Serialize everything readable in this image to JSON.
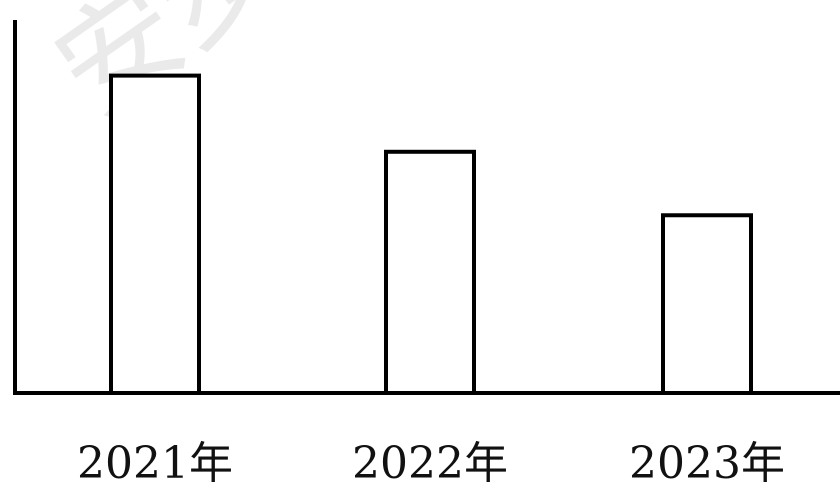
{
  "watermark": "安步",
  "chart_data": {
    "type": "bar",
    "categories": [
      "2021年",
      "2022年",
      "2023年"
    ],
    "values": [
      100,
      76,
      56
    ],
    "title": "",
    "xlabel": "",
    "ylabel": "",
    "ylim": [
      0,
      115
    ],
    "grid": false,
    "bar_fill": "#ffffff",
    "bar_stroke": "#000000"
  }
}
